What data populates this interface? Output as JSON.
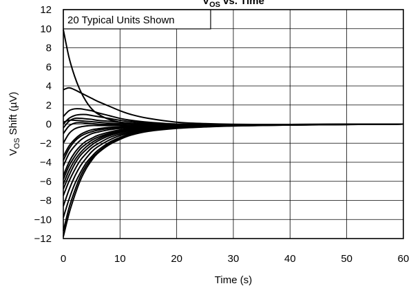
{
  "chart_data": {
    "type": "line",
    "title": "VOS vs. Time",
    "title_main": "V",
    "title_sub": "OS",
    "title_rest": " vs. Time",
    "xlabel": "Time (s)",
    "ylabel_main": "V",
    "ylabel_sub": "OS",
    "ylabel_rest": " Shift (µV)",
    "xlim": [
      0,
      60
    ],
    "ylim": [
      -12,
      12
    ],
    "xticks": [
      0,
      10,
      20,
      30,
      40,
      50,
      60
    ],
    "yticks": [
      12,
      10,
      8,
      6,
      4,
      2,
      0,
      -2,
      -4,
      -6,
      -8,
      -10,
      -12
    ],
    "x_tick_labels": [
      "0",
      "10",
      "20",
      "30",
      "40",
      "50",
      "60"
    ],
    "y_tick_labels": [
      "12",
      "10",
      "8",
      "6",
      "4",
      "2",
      "0",
      "−2",
      "−4",
      "−6",
      "−8",
      "−10",
      "−12"
    ],
    "grid": true,
    "annotation": "20 Typical Units Shown",
    "series_x": [
      0,
      1,
      2,
      3,
      4,
      5,
      6,
      8,
      10,
      12,
      15,
      20,
      25,
      30,
      40,
      50,
      60
    ],
    "series": [
      {
        "values": [
          9.9,
          7.0,
          5.0,
          3.5,
          2.4,
          1.6,
          1.1,
          0.5,
          0.2,
          0.05,
          -0.05,
          -0.15,
          -0.15,
          -0.12,
          -0.08,
          -0.03,
          0.0
        ]
      },
      {
        "values": [
          3.6,
          3.8,
          3.6,
          3.3,
          3.0,
          2.7,
          2.4,
          1.9,
          1.4,
          1.0,
          0.6,
          0.2,
          0.05,
          -0.02,
          -0.05,
          -0.02,
          0.0
        ]
      },
      {
        "values": [
          0.8,
          1.4,
          1.6,
          1.6,
          1.5,
          1.4,
          1.2,
          0.9,
          0.6,
          0.4,
          0.2,
          0.0,
          -0.05,
          -0.05,
          -0.05,
          -0.02,
          0.0
        ]
      },
      {
        "values": [
          0.0,
          0.6,
          0.9,
          1.0,
          1.0,
          0.9,
          0.8,
          0.6,
          0.4,
          0.25,
          0.1,
          0.0,
          -0.05,
          -0.05,
          -0.04,
          -0.02,
          0.0
        ]
      },
      {
        "values": [
          -0.4,
          0.3,
          0.6,
          0.6,
          0.55,
          0.5,
          0.4,
          0.3,
          0.2,
          0.1,
          0.0,
          -0.05,
          -0.05,
          -0.05,
          -0.04,
          -0.02,
          0.0
        ]
      },
      {
        "values": [
          0.2,
          0.4,
          0.4,
          0.35,
          0.3,
          0.25,
          0.2,
          0.1,
          0.05,
          0.0,
          -0.05,
          -0.08,
          -0.07,
          -0.06,
          -0.04,
          -0.02,
          0.0
        ]
      },
      {
        "values": [
          -1.0,
          -0.2,
          0.1,
          0.15,
          0.1,
          0.05,
          0.0,
          -0.05,
          -0.1,
          -0.12,
          -0.12,
          -0.1,
          -0.08,
          -0.06,
          -0.04,
          -0.02,
          0.0
        ]
      },
      {
        "values": [
          -2.0,
          -1.0,
          -0.5,
          -0.3,
          -0.2,
          -0.15,
          -0.15,
          -0.15,
          -0.15,
          -0.15,
          -0.14,
          -0.12,
          -0.1,
          -0.08,
          -0.05,
          -0.02,
          0.0
        ]
      },
      {
        "values": [
          -3.4,
          -2.3,
          -1.6,
          -1.1,
          -0.8,
          -0.6,
          -0.5,
          -0.35,
          -0.3,
          -0.25,
          -0.2,
          -0.15,
          -0.12,
          -0.1,
          -0.06,
          -0.03,
          0.0
        ]
      },
      {
        "values": [
          -3.8,
          -2.6,
          -1.8,
          -1.3,
          -1.0,
          -0.8,
          -0.65,
          -0.45,
          -0.35,
          -0.3,
          -0.25,
          -0.18,
          -0.14,
          -0.1,
          -0.06,
          -0.03,
          0.0
        ]
      },
      {
        "values": [
          -4.4,
          -3.1,
          -2.3,
          -1.7,
          -1.3,
          -1.0,
          -0.85,
          -0.6,
          -0.45,
          -0.35,
          -0.28,
          -0.2,
          -0.15,
          -0.12,
          -0.07,
          -0.03,
          0.0
        ]
      },
      {
        "values": [
          -5.4,
          -4.0,
          -3.0,
          -2.3,
          -1.8,
          -1.5,
          -1.2,
          -0.85,
          -0.6,
          -0.45,
          -0.33,
          -0.22,
          -0.17,
          -0.13,
          -0.07,
          -0.03,
          0.0
        ]
      },
      {
        "values": [
          -5.8,
          -4.4,
          -3.4,
          -2.6,
          -2.1,
          -1.7,
          -1.4,
          -1.0,
          -0.72,
          -0.55,
          -0.4,
          -0.25,
          -0.18,
          -0.13,
          -0.08,
          -0.03,
          0.0
        ]
      },
      {
        "values": [
          -6.3,
          -4.9,
          -3.8,
          -3.0,
          -2.4,
          -1.95,
          -1.6,
          -1.1,
          -0.8,
          -0.6,
          -0.42,
          -0.27,
          -0.2,
          -0.14,
          -0.08,
          -0.04,
          0.0
        ]
      },
      {
        "values": [
          -6.8,
          -5.4,
          -4.2,
          -3.3,
          -2.7,
          -2.2,
          -1.8,
          -1.25,
          -0.9,
          -0.68,
          -0.48,
          -0.3,
          -0.21,
          -0.15,
          -0.08,
          -0.04,
          0.0
        ]
      },
      {
        "values": [
          -7.5,
          -6.0,
          -4.8,
          -3.8,
          -3.1,
          -2.5,
          -2.1,
          -1.45,
          -1.05,
          -0.78,
          -0.53,
          -0.32,
          -0.22,
          -0.16,
          -0.09,
          -0.04,
          0.0
        ]
      },
      {
        "values": [
          -8.6,
          -6.9,
          -5.5,
          -4.4,
          -3.6,
          -2.9,
          -2.4,
          -1.7,
          -1.2,
          -0.9,
          -0.6,
          -0.35,
          -0.24,
          -0.17,
          -0.09,
          -0.04,
          0.0
        ]
      },
      {
        "values": [
          -9.8,
          -7.9,
          -6.3,
          -5.1,
          -4.1,
          -3.4,
          -2.8,
          -1.95,
          -1.4,
          -1.0,
          -0.68,
          -0.4,
          -0.26,
          -0.18,
          -0.1,
          -0.04,
          0.0
        ]
      },
      {
        "values": [
          -11.2,
          -8.8,
          -7.0,
          -5.5,
          -4.4,
          -3.6,
          -3.0,
          -2.1,
          -1.5,
          -1.1,
          -0.72,
          -0.42,
          -0.28,
          -0.19,
          -0.1,
          -0.05,
          0.0
        ]
      },
      {
        "values": [
          -11.8,
          -9.4,
          -7.5,
          -5.9,
          -4.7,
          -3.8,
          -3.1,
          -2.2,
          -1.6,
          -1.15,
          -0.76,
          -0.45,
          -0.3,
          -0.2,
          -0.1,
          -0.05,
          0.0
        ]
      }
    ]
  }
}
